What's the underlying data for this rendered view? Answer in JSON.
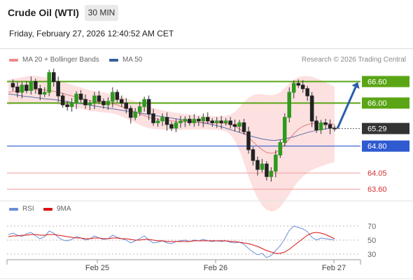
{
  "header": {
    "title": "Crude Oil (WTI)",
    "timeframe": "30 MIN",
    "datetime": "Friday, February 27, 2026 12:40:52 AM CET"
  },
  "legend": {
    "ma20_label": "MA 20 + Bollinger Bands",
    "ma50_label": "MA 50",
    "ma20_color": "#f08a8a",
    "ma50_color": "#355f9c",
    "copyright": "Research © 2026 Trading Central"
  },
  "rsi_legend": {
    "rsi_label": "RSI",
    "ma9_label": "9MA",
    "rsi_color": "#6a8fd8",
    "ma9_color": "#dd1111"
  },
  "chart_data": [
    {
      "type": "candlestick",
      "ylim": [
        63.35,
        67.0
      ],
      "current_price": 65.29,
      "levels": [
        {
          "value": 66.6,
          "label": "66.60",
          "kind": "resistance",
          "color": "#5aa516"
        },
        {
          "value": 66.0,
          "label": "66.00",
          "kind": "resistance",
          "color": "#5aa516"
        },
        {
          "value": 65.29,
          "label": "65.29",
          "kind": "last",
          "color": "#333333"
        },
        {
          "value": 64.8,
          "label": "64.80",
          "kind": "pivot",
          "color": "#2f5ad0"
        },
        {
          "value": 64.05,
          "label": "64.05",
          "kind": "support",
          "color": "#f39a9a"
        },
        {
          "value": 63.6,
          "label": "63.60",
          "kind": "support",
          "color": "#f39a9a"
        }
      ],
      "projection": {
        "from": 65.29,
        "to": 66.6,
        "direction": "up",
        "color": "#2b5ea8"
      },
      "x_ticks": [
        "Feb 25",
        "Feb 26",
        "Feb 27"
      ],
      "close_path": [
        66.55,
        66.45,
        66.3,
        66.5,
        66.35,
        66.6,
        66.4,
        66.25,
        66.3,
        66.85,
        66.6,
        66.2,
        65.95,
        65.9,
        66.0,
        66.25,
        66.1,
        65.95,
        66.0,
        66.2,
        66.05,
        65.95,
        66.05,
        66.3,
        66.1,
        66.0,
        65.85,
        65.6,
        65.75,
        65.9,
        66.1,
        65.7,
        65.45,
        65.5,
        65.6,
        65.4,
        65.3,
        65.45,
        65.5,
        65.55,
        65.45,
        65.55,
        65.5,
        65.6,
        65.5,
        65.45,
        65.5,
        65.45,
        65.5,
        65.4,
        65.35,
        65.45,
        65.2,
        64.7,
        64.4,
        64.15,
        64.3,
        63.95,
        64.1,
        64.55,
        64.9,
        65.6,
        66.3,
        66.55,
        66.5,
        66.4,
        66.2,
        65.5,
        65.25,
        65.45,
        65.4,
        65.3,
        65.29
      ],
      "ma20": [
        66.3,
        66.32,
        66.33,
        66.35,
        66.36,
        66.38,
        66.38,
        66.37,
        66.36,
        66.35,
        66.33,
        66.3,
        66.27,
        66.23,
        66.2,
        66.17,
        66.14,
        66.1,
        66.07,
        66.05,
        66.03,
        66.02,
        66.0,
        65.98,
        65.95,
        65.9,
        65.85,
        65.8,
        65.75,
        65.7,
        65.65,
        65.6,
        65.57,
        65.55,
        65.53,
        65.52,
        65.5,
        65.49,
        65.48,
        65.48,
        65.47,
        65.47,
        65.46,
        65.46,
        65.45,
        65.45,
        65.44,
        65.44,
        65.43,
        65.4,
        65.35,
        65.28,
        65.18,
        65.05,
        64.92,
        64.8,
        64.7,
        64.62,
        64.6,
        64.62,
        64.7,
        64.85,
        65.0,
        65.15,
        65.27,
        65.35,
        65.4,
        65.43,
        65.44,
        65.44,
        65.43,
        65.42,
        65.41
      ],
      "ma50": [
        66.25,
        66.24,
        66.22,
        66.2,
        66.18,
        66.17,
        66.15,
        66.14,
        66.12,
        66.11,
        66.1,
        66.08,
        66.06,
        66.04,
        66.02,
        66.0,
        65.98,
        65.96,
        65.94,
        65.92,
        65.9,
        65.88,
        65.86,
        65.84,
        65.82,
        65.8,
        65.78,
        65.76,
        65.74,
        65.72,
        65.7,
        65.68,
        65.66,
        65.64,
        65.62,
        65.6,
        65.58,
        65.56,
        65.54,
        65.52,
        65.5,
        65.48,
        65.46,
        65.44,
        65.42,
        65.4,
        65.37,
        65.34,
        65.3,
        65.26,
        65.22,
        65.18,
        65.14,
        65.1,
        65.06,
        65.03,
        65.0,
        64.98,
        64.96,
        64.96,
        64.98,
        65.0,
        65.03,
        65.06,
        65.1,
        65.14,
        65.18,
        65.21,
        65.24,
        65.26,
        65.28,
        65.3,
        65.31
      ],
      "bb_width": [
        0.35,
        0.35,
        0.36,
        0.37,
        0.38,
        0.38,
        0.38,
        0.37,
        0.36,
        0.36,
        0.35,
        0.34,
        0.33,
        0.32,
        0.31,
        0.3,
        0.3,
        0.29,
        0.29,
        0.28,
        0.28,
        0.28,
        0.27,
        0.27,
        0.27,
        0.27,
        0.28,
        0.29,
        0.3,
        0.31,
        0.31,
        0.3,
        0.29,
        0.28,
        0.27,
        0.26,
        0.25,
        0.24,
        0.23,
        0.22,
        0.21,
        0.2,
        0.2,
        0.19,
        0.19,
        0.19,
        0.19,
        0.2,
        0.22,
        0.28,
        0.4,
        0.6,
        0.85,
        1.1,
        1.3,
        1.45,
        1.55,
        1.6,
        1.62,
        1.62,
        1.6,
        1.58,
        1.55,
        1.5,
        1.45,
        1.4,
        1.35,
        1.3,
        1.25,
        1.2,
        1.15,
        1.1,
        1.05
      ]
    },
    {
      "type": "line",
      "ylim": [
        20,
        80
      ],
      "y_ticks": [
        70,
        50,
        30
      ],
      "series": [
        {
          "name": "RSI",
          "values": [
            58,
            60,
            57,
            55,
            59,
            61,
            56,
            52,
            55,
            63,
            60,
            54,
            50,
            49,
            51,
            55,
            53,
            50,
            52,
            56,
            53,
            51,
            52,
            57,
            54,
            52,
            50,
            46,
            49,
            52,
            56,
            50,
            46,
            47,
            49,
            46,
            45,
            48,
            49,
            50,
            48,
            50,
            49,
            51,
            49,
            48,
            49,
            48,
            49,
            47,
            46,
            47,
            44,
            38,
            33,
            29,
            31,
            25,
            28,
            35,
            42,
            52,
            64,
            70,
            68,
            66,
            62,
            54,
            50,
            53,
            52,
            51,
            50
          ]
        },
        {
          "name": "9MA",
          "values": [
            55,
            56,
            56,
            57,
            57,
            58,
            58,
            57,
            57,
            58,
            58,
            57,
            56,
            55,
            54,
            53,
            53,
            52,
            52,
            53,
            53,
            52,
            52,
            53,
            53,
            52,
            52,
            51,
            50,
            50,
            51,
            51,
            50,
            49,
            49,
            48,
            48,
            48,
            48,
            48,
            48,
            49,
            49,
            49,
            49,
            49,
            49,
            49,
            49,
            48,
            48,
            47,
            46,
            45,
            43,
            41,
            38,
            35,
            33,
            31,
            31,
            33,
            37,
            42,
            47,
            52,
            57,
            60,
            61,
            60,
            58,
            55,
            52
          ]
        }
      ]
    }
  ]
}
